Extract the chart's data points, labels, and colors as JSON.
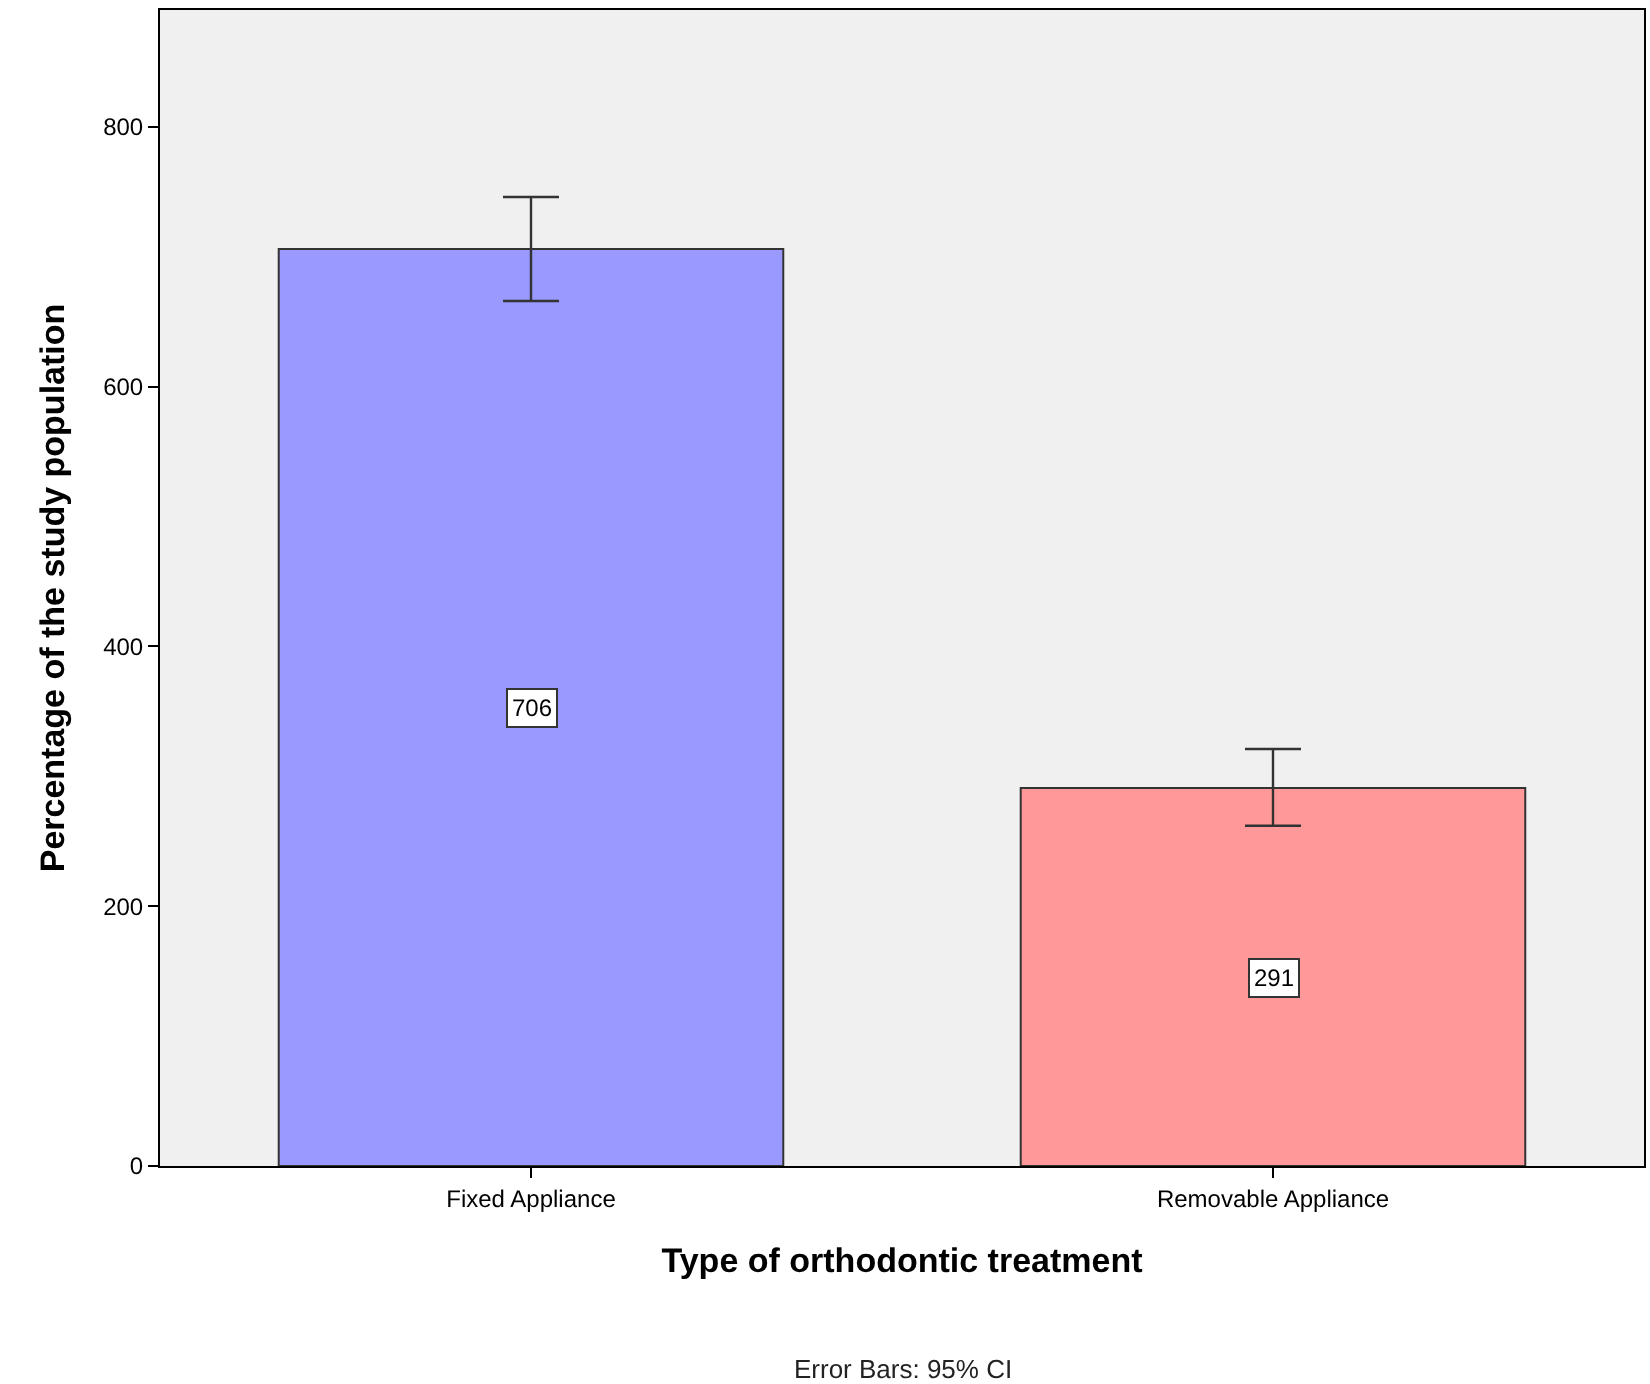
{
  "chart_data": {
    "type": "bar",
    "xlabel": "Type of orthodontic treatment",
    "ylabel": "Percentage of the study population",
    "categories": [
      "Fixed Appliance",
      "Removable Appliance"
    ],
    "values": [
      706,
      291
    ],
    "colors": [
      "#9999ff",
      "#ff9999"
    ],
    "errors": [
      [
        666,
        746
      ],
      [
        262,
        321
      ]
    ],
    "data_labels": true,
    "ylim": [
      0,
      890
    ],
    "yticks": [
      0,
      200,
      400,
      600,
      800
    ],
    "grid": false,
    "legend": false,
    "annotations": [
      "Error Bars: 95% CI"
    ]
  }
}
